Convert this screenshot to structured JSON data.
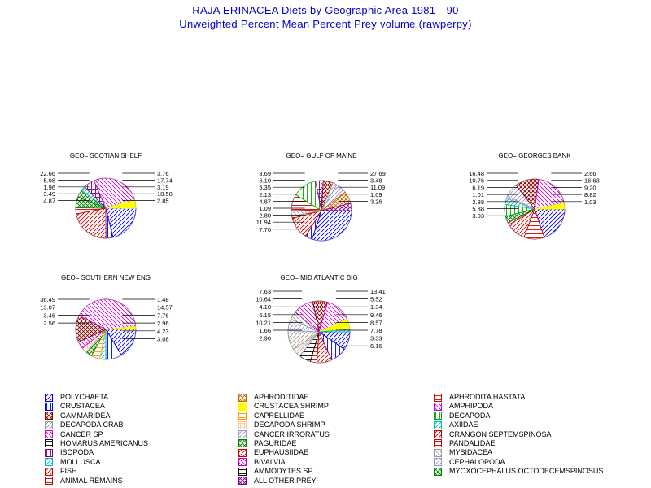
{
  "header": {
    "title": "RAJA ERINACEA Diets by Geographic Area 1981—90",
    "subtitle": "Unweighted Percent Mean Percent Prey  volume (rawperpy)"
  },
  "colors": {
    "title": "#0000cc",
    "POLYCHAETA": "#0000ff",
    "CRUSTACEA": "#0000ff",
    "GAMMARIDEA": "#800000",
    "DECAPODA CRAB": "#999999",
    "CANCER SP": "#cc00cc",
    "HOMARUS AMERICANUS": "#000000",
    "ISOPODA": "#800080",
    "MOLLUSCA": "#00bbbb",
    "FISH": "#cc0000",
    "ANIMAL REMAINS": "#cc0000",
    "APHRODITIDAE": "#cc6600",
    "CRUSTACEA SHRIMP": "#ffff00",
    "CAPRELLIDAE": "#ff9900",
    "DECAPODA SHRIMP": "#ffcc99",
    "CANCER IRRORATUS": "#9999cc",
    "PAGURIDAE": "#008000",
    "EUPHAUSIIDAE": "#cc0000",
    "BIVALVIA": "#cc00cc",
    "AMMODYTES SP": "#000000",
    "ALL OTHER PREY": "#800080",
    "APHRODITA HASTATA": "#cc0000",
    "AMPHIPODA": "#cc00cc",
    "DECAPODA": "#00aa00",
    "AXIIDAE": "#00bbbb",
    "CRANGON SEPTEMSPINOSA": "#cc0000",
    "PANDALIDAE": "#cc0000",
    "MYSIDACEA": "#999999",
    "CEPHALOPODA": "#9999cc",
    "MYOXOCEPHALUS OCTODECEMSPINOSUS": "#008000"
  },
  "chart_data": [
    {
      "type": "pie",
      "title": "GEO= SCOTIAN SHELF",
      "slices": [
        {
          "category": "POLYCHAETA",
          "value": 17.74
        },
        {
          "category": "CRUSTACEA",
          "value": 3.19
        },
        {
          "category": "FISH",
          "value": 18.5
        },
        {
          "category": "ANIMAL REMAINS",
          "value": 2.85
        },
        {
          "category": "MYOXOCEPHALUS OCTODECEMSPINOSUS",
          "value": 4.87
        },
        {
          "category": "PAGURIDAE",
          "value": 3.49
        },
        {
          "category": "MOLLUSCA",
          "value": 1.96
        },
        {
          "category": "ISOPODA",
          "value": 5.08
        },
        {
          "category": "CANCER SP",
          "value": 22.66
        },
        {
          "category": "CRUSTACEA SHRIMP",
          "value": 3.76
        }
      ],
      "labels": {
        "right": [
          "3.76",
          "17.74",
          "3.19",
          "18.50",
          "2.85"
        ],
        "left": [
          "22.66",
          "5.08",
          "1.96",
          "3.49",
          "4.87"
        ]
      }
    },
    {
      "type": "pie",
      "title": "GEO= GULF OF MAINE",
      "slices": [
        {
          "category": "POLYCHAETA",
          "value": 27.69
        },
        {
          "category": "CRUSTACEA",
          "value": 3.48
        },
        {
          "category": "FISH",
          "value": 11.09
        },
        {
          "category": "ANIMAL REMAINS",
          "value": 1.09
        },
        {
          "category": "MYSIDACEA",
          "value": 3.26
        },
        {
          "category": "PANDALIDAE",
          "value": 7.7
        },
        {
          "category": "DECAPODA",
          "value": 11.94
        },
        {
          "category": "ISOPODA",
          "value": 2.8
        },
        {
          "category": "CANCER SP",
          "value": 1.09
        },
        {
          "category": "GAMMARIDEA",
          "value": 4.87
        },
        {
          "category": "DECAPODA CRAB",
          "value": 2.13
        },
        {
          "category": "CANCER IRRORATUS",
          "value": 5.35
        },
        {
          "category": "APHRODITIDAE",
          "value": 6.1
        },
        {
          "category": "ALL OTHER PREY",
          "value": 3.69
        }
      ],
      "labels": {
        "right": [
          "27.69",
          "3.48",
          "11.09",
          "1.09",
          "3.26"
        ],
        "left": [
          "3.69",
          "6.10",
          "5.35",
          "2.13",
          "4.87",
          "1.09",
          "2.80",
          "11.94",
          "7.70"
        ]
      }
    },
    {
      "type": "pie",
      "title": "GEO= GEORGES BANK",
      "slices": [
        {
          "category": "POLYCHAETA",
          "value": 16.63
        },
        {
          "category": "PANDALIDAE",
          "value": 9.2
        },
        {
          "category": "CRANGON SEPTEMSPINOSA",
          "value": 8.82
        },
        {
          "category": "FISH",
          "value": 1.03
        },
        {
          "category": "PAGURIDAE",
          "value": 3.03
        },
        {
          "category": "DECAPODA",
          "value": 5.38
        },
        {
          "category": "MOLLUSCA",
          "value": 2.88
        },
        {
          "category": "DECAPODA CRAB",
          "value": 1.01
        },
        {
          "category": "CANCER IRRORATUS",
          "value": 6.19
        },
        {
          "category": "GAMMARIDEA",
          "value": 10.76
        },
        {
          "category": "CANCER SP",
          "value": 16.48
        },
        {
          "category": "CRUSTACEA SHRIMP",
          "value": 2.66
        }
      ],
      "labels": {
        "right": [
          "2.66",
          "16.63",
          "9.20",
          "8.82",
          "1.03"
        ],
        "left": [
          "16.48",
          "10.76",
          "6.19",
          "1.01",
          "2.88",
          "5.38",
          "3.03"
        ]
      }
    },
    {
      "type": "pie",
      "title": "GEO= SOUTHERN NEW ENG",
      "slices": [
        {
          "category": "POLYCHAETA",
          "value": 14.57
        },
        {
          "category": "CRUSTACEA",
          "value": 7.76
        },
        {
          "category": "MOLLUSCA",
          "value": 2.96
        },
        {
          "category": "CAPRELLIDAE",
          "value": 4.23
        },
        {
          "category": "PAGURIDAE",
          "value": 3.08
        },
        {
          "category": "DECAPODA SHRIMP",
          "value": 2.56
        },
        {
          "category": "CANCER SP",
          "value": 3.46
        },
        {
          "category": "GAMMARIDEA",
          "value": 13.07
        },
        {
          "category": "AMPHIPODA",
          "value": 36.49
        },
        {
          "category": "CRUSTACEA SHRIMP",
          "value": 1.48
        }
      ],
      "labels": {
        "right": [
          "1.48",
          "14.57",
          "7.76",
          "2.96",
          "4.23",
          "3.08"
        ],
        "left": [
          "36.49",
          "13.07",
          "3.46",
          "2.56"
        ]
      }
    },
    {
      "type": "pie",
      "title": "GEO= MID ATLANTIC BIG",
      "slices": [
        {
          "category": "POLYCHAETA",
          "value": 9.46
        },
        {
          "category": "CRUSTACEA",
          "value": 8.57
        },
        {
          "category": "FISH",
          "value": 7.78
        },
        {
          "category": "ANIMAL REMAINS",
          "value": 3.33
        },
        {
          "category": "AMMODYTES SP",
          "value": 6.16
        },
        {
          "category": "CEPHALOPODA",
          "value": 2.9
        },
        {
          "category": "DECAPODA SHRIMP",
          "value": 1.66
        },
        {
          "category": "DECAPODA CRAB",
          "value": 10.21
        },
        {
          "category": "CANCER IRRORATUS",
          "value": 6.15
        },
        {
          "category": "MYSIDACEA",
          "value": 4.1
        },
        {
          "category": "BIVALVIA",
          "value": 10.64
        },
        {
          "category": "GAMMARIDEA",
          "value": 7.63
        },
        {
          "category": "AMPHIPODA",
          "value": 13.41
        },
        {
          "category": "CRUSTACEA SHRIMP",
          "value": 5.52
        },
        {
          "category": "MOLLUSCA",
          "value": 1.34
        }
      ],
      "labels": {
        "right": [
          "13.41",
          "5.52",
          "1.34",
          "9.46",
          "8.57",
          "7.78",
          "3.33",
          "6.16"
        ],
        "left": [
          "7.63",
          "10.64",
          "4.10",
          "6.15",
          "10.21",
          "1.66",
          "2.90"
        ]
      }
    }
  ],
  "legend": {
    "col1": [
      "POLYCHAETA",
      "CRUSTACEA",
      "GAMMARIDEA",
      "DECAPODA CRAB",
      "CANCER SP",
      "HOMARUS AMERICANUS",
      "ISOPODA",
      "MOLLUSCA",
      "FISH",
      "ANIMAL REMAINS"
    ],
    "col2": [
      "APHRODITIDAE",
      "CRUSTACEA SHRIMP",
      "CAPRELLIDAE",
      "DECAPODA SHRIMP",
      "CANCER IRRORATUS",
      "PAGURIDAE",
      "EUPHAUSIIDAE",
      "BIVALVIA",
      "AMMODYTES SP",
      "ALL OTHER PREY"
    ],
    "col3": [
      "APHRODITA HASTATA",
      "AMPHIPODA",
      "DECAPODA",
      "AXIIDAE",
      "CRANGON SEPTEMSPINOSA",
      "PANDALIDAE",
      "MYSIDACEA",
      "CEPHALOPODA",
      "MYOXOCEPHALUS OCTODECEMSPINOSUS"
    ]
  }
}
